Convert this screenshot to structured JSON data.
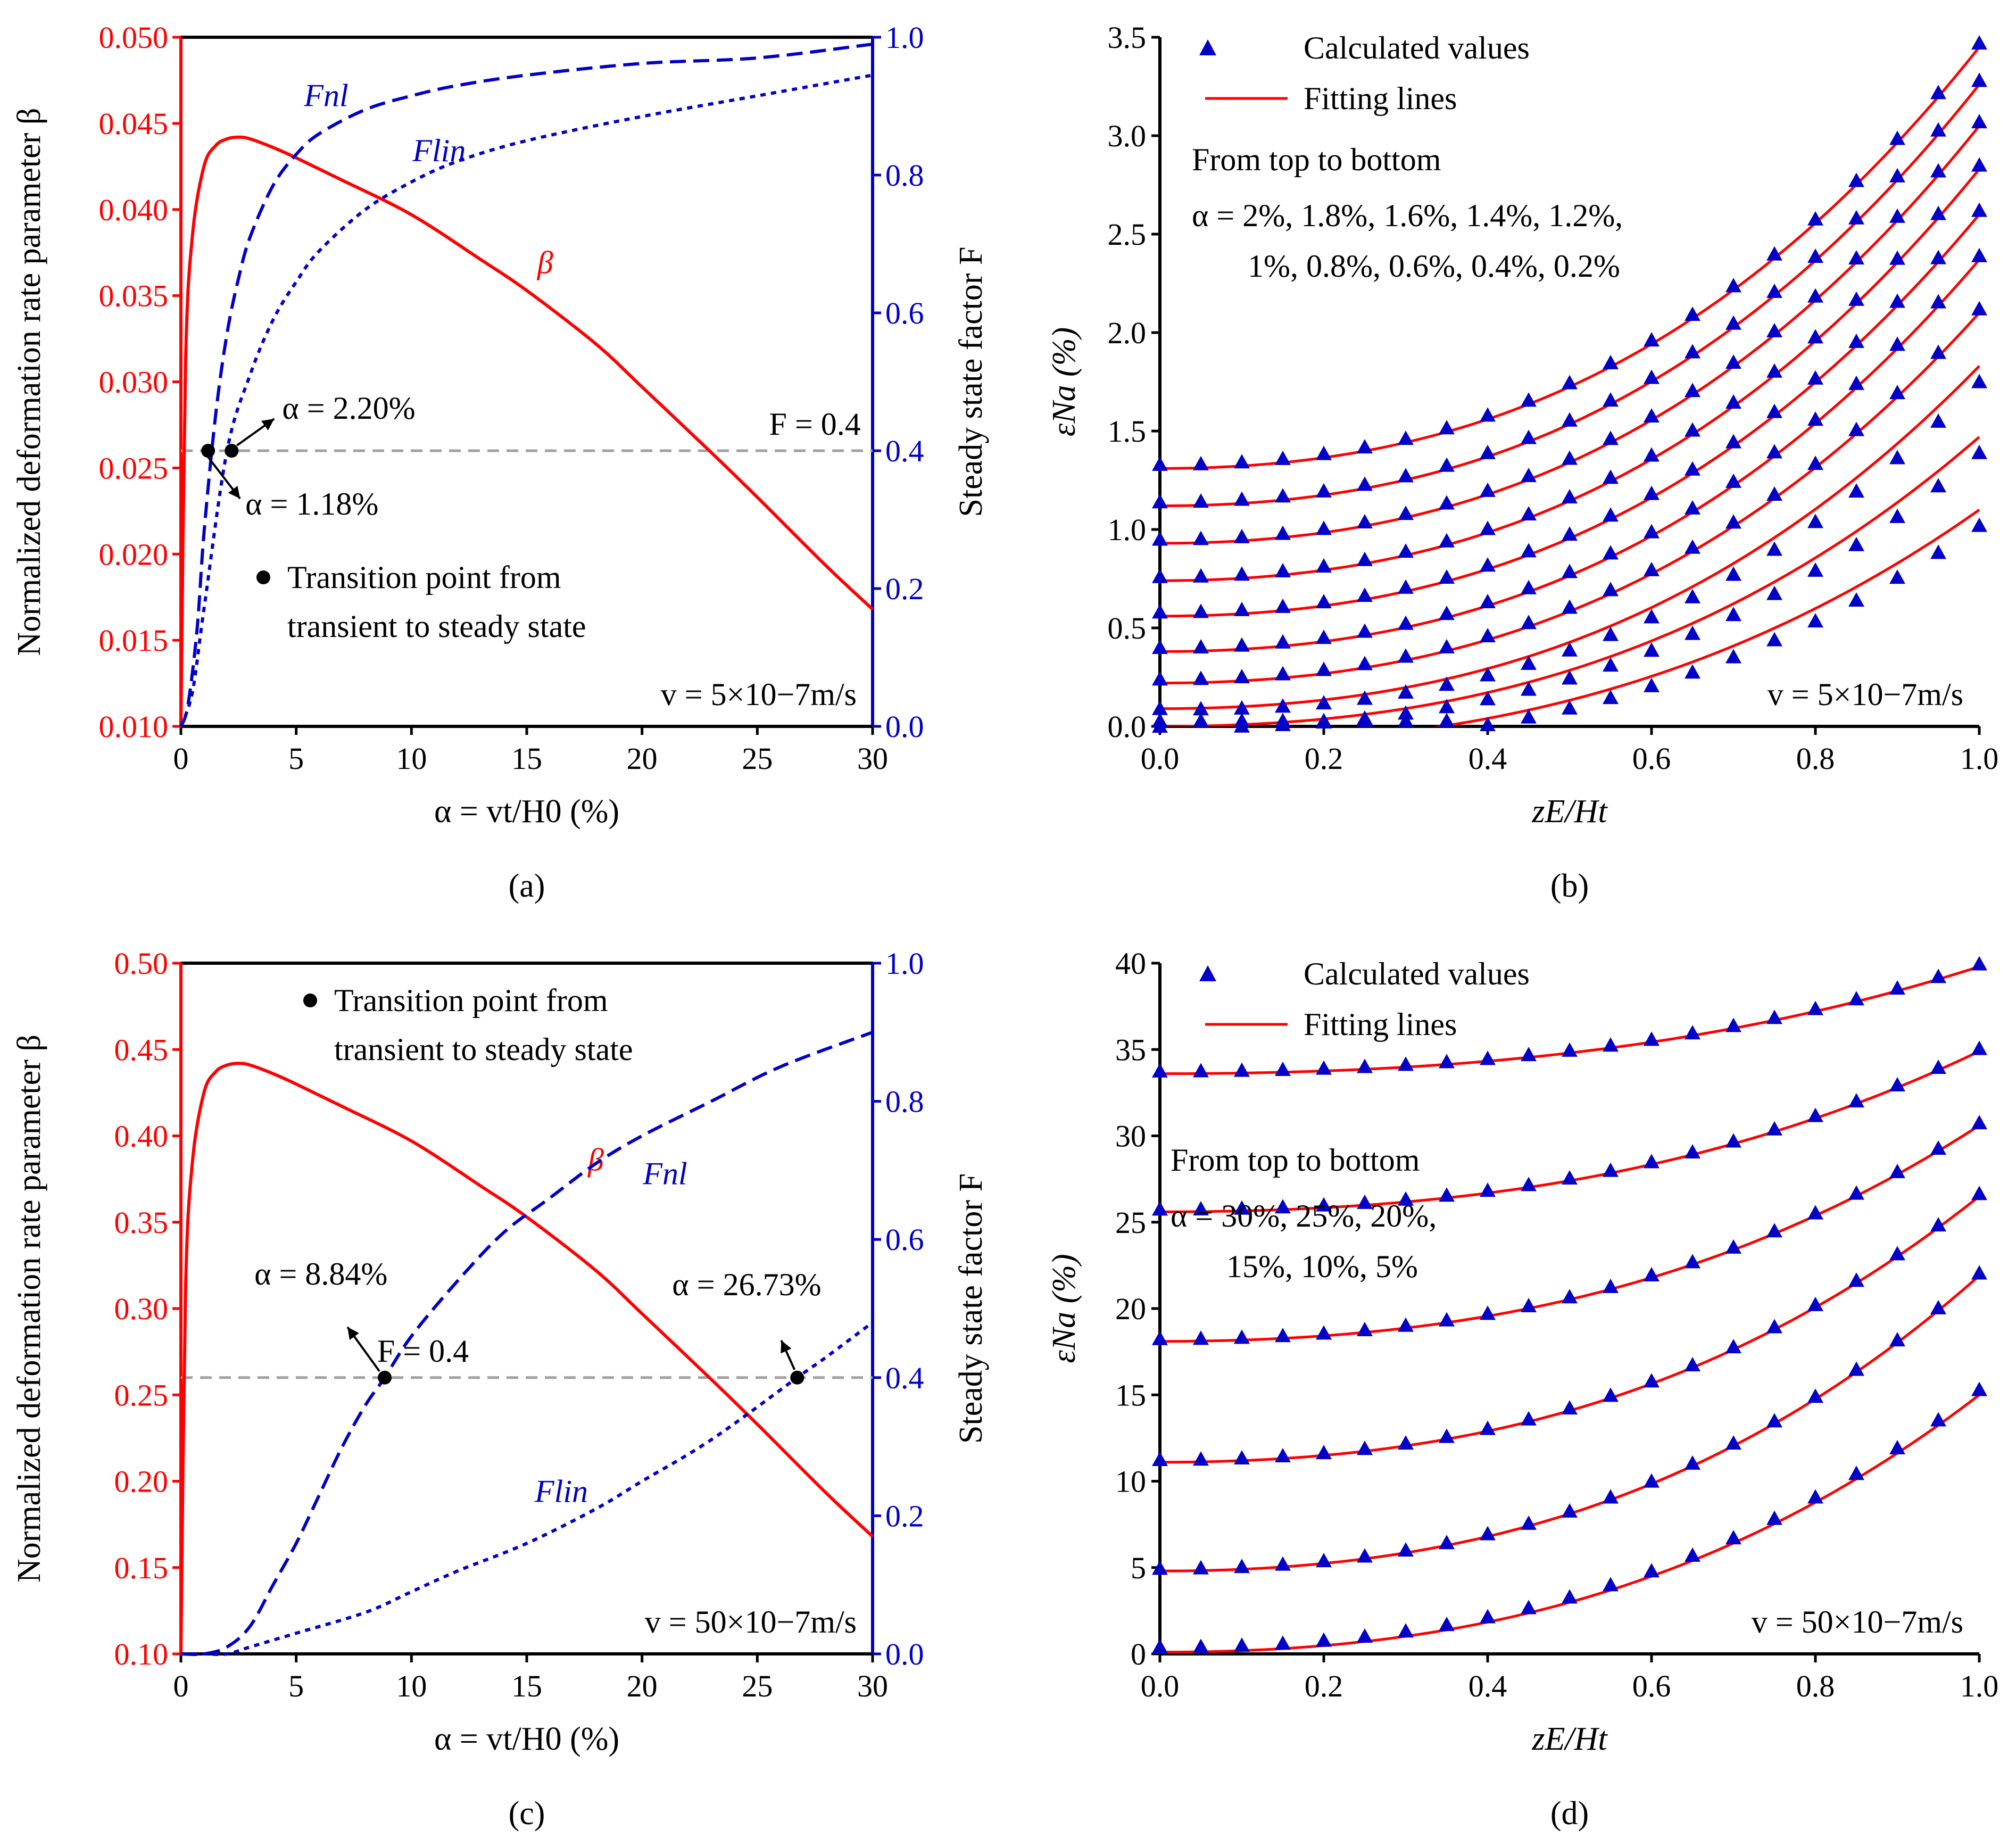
{
  "colors": {
    "beta": "#ff0000",
    "F": "#0000c8",
    "points": "#0000c8",
    "fit": "#ff0000",
    "threshold": "#a0a0a0",
    "marker": "#000000"
  },
  "chart_data": [
    {
      "panel": "a",
      "panel_label": "(a)",
      "type": "line",
      "xlabel": "α = vt/H0 (%)",
      "ylabel_left": "Normalized deformation rate parameter β",
      "ylabel_right": "Steady state factor F",
      "xlim": [
        0,
        30
      ],
      "ylim_left": [
        0.01,
        0.05
      ],
      "ylim_right": [
        0,
        1
      ],
      "xticks": [
        "0",
        "5",
        "10",
        "15",
        "20",
        "25",
        "30"
      ],
      "yticks_left": [
        "0.010",
        "0.015",
        "0.020",
        "0.025",
        "0.030",
        "0.035",
        "0.040",
        "0.045",
        "0.050"
      ],
      "yticks_right": [
        "0.0",
        "0.2",
        "0.4",
        "0.6",
        "0.8",
        "1.0"
      ],
      "series": [
        {
          "name": "β",
          "axis": "left",
          "style": "solid",
          "x": [
            0,
            0.2,
            0.5,
            1,
            1.5,
            2,
            2.5,
            3,
            4,
            5,
            7,
            10,
            13,
            15,
            18,
            20,
            23,
            25,
            28,
            30
          ],
          "y": [
            0.01,
            0.031,
            0.0385,
            0.0425,
            0.0437,
            0.0441,
            0.0442,
            0.0441,
            0.0436,
            0.043,
            0.0417,
            0.0397,
            0.0371,
            0.0353,
            0.0322,
            0.0297,
            0.0259,
            0.0233,
            0.0193,
            0.0168
          ]
        },
        {
          "name": "Fnl",
          "axis": "right",
          "style": "dashed",
          "x": [
            0,
            0.3,
            0.7,
            1,
            1.5,
            2,
            2.5,
            3,
            4,
            5,
            6,
            8,
            10,
            12,
            15,
            20,
            25,
            30
          ],
          "y": [
            0,
            0.03,
            0.14,
            0.28,
            0.45,
            0.57,
            0.65,
            0.71,
            0.785,
            0.83,
            0.86,
            0.895,
            0.915,
            0.93,
            0.945,
            0.962,
            0.97,
            0.99
          ]
        },
        {
          "name": "Flin",
          "axis": "right",
          "style": "dotted",
          "x": [
            0,
            0.5,
            1,
            2,
            3,
            4,
            5,
            6,
            8,
            10,
            12,
            15,
            20,
            25,
            30
          ],
          "y": [
            0,
            0.05,
            0.17,
            0.4,
            0.51,
            0.59,
            0.645,
            0.69,
            0.75,
            0.79,
            0.82,
            0.85,
            0.885,
            0.915,
            0.945
          ]
        }
      ],
      "threshold": {
        "label": "F = 0.4",
        "F": 0.4
      },
      "transition_points": [
        {
          "x": 1.18,
          "F": 0.4,
          "label": "α = 1.18%"
        },
        {
          "x": 2.2,
          "F": 0.4,
          "label": "α = 2.20%"
        }
      ],
      "legend": "● Transition point from transient to steady state",
      "legend_line1": "Transition point from",
      "legend_line2": "transient to steady state",
      "velocity_label": "v = 5×10−7m/s"
    },
    {
      "panel": "b",
      "panel_label": "(b)",
      "type": "scatter",
      "xlabel": "zE/Ht",
      "ylabel": "εNa (%)",
      "xlim": [
        0,
        1
      ],
      "ylim": [
        0,
        3.5
      ],
      "xticks": [
        "0.0",
        "0.2",
        "0.4",
        "0.6",
        "0.8",
        "1.0"
      ],
      "yticks": [
        "0.0",
        "0.5",
        "1.0",
        "1.5",
        "2.0",
        "2.5",
        "3.0",
        "3.5"
      ],
      "legend": {
        "points": "Calculated values",
        "lines": "Fitting lines"
      },
      "note_title": "From top to bottom",
      "note_line1": "α = 2%, 1.8%, 1.6%, 1.4%, 1.2%,",
      "note_line2": "1%, 0.8%, 0.6%, 0.4%, 0.2%",
      "velocity_label": "v = 5×10−7m/s",
      "x_points": [
        0,
        0.05,
        0.1,
        0.15,
        0.2,
        0.25,
        0.3,
        0.35,
        0.4,
        0.45,
        0.5,
        0.55,
        0.6,
        0.65,
        0.7,
        0.75,
        0.8,
        0.85,
        0.9,
        0.95,
        1.0
      ],
      "curves": [
        {
          "alpha": "2%",
          "y0": 1.31,
          "y1": 3.45
        },
        {
          "alpha": "1.8%",
          "y0": 1.12,
          "y1": 3.26
        },
        {
          "alpha": "1.6%",
          "y0": 0.93,
          "y1": 3.05
        },
        {
          "alpha": "1.4%",
          "y0": 0.74,
          "y1": 2.83
        },
        {
          "alpha": "1.2%",
          "y0": 0.56,
          "y1": 2.6
        },
        {
          "alpha": "1%",
          "y0": 0.38,
          "y1": 2.37
        },
        {
          "alpha": "0.8%",
          "y0": 0.22,
          "y1": 2.1
        },
        {
          "alpha": "0.6%",
          "y0": 0.09,
          "y1": 1.83
        },
        {
          "alpha": "0.4%",
          "y0": 0.0,
          "y1": 1.47
        },
        {
          "alpha": "0.2%",
          "y0": -0.1,
          "y1": 1.1
        }
      ]
    },
    {
      "panel": "c",
      "panel_label": "(c)",
      "type": "line",
      "xlabel": "α = vt/H0 (%)",
      "ylabel_left": "Normalized deformation rate parameter β",
      "ylabel_right": "Steady state factor F",
      "xlim": [
        0,
        30
      ],
      "ylim_left": [
        0.1,
        0.5
      ],
      "ylim_right": [
        0,
        1
      ],
      "xticks": [
        "0",
        "5",
        "10",
        "15",
        "20",
        "25",
        "30"
      ],
      "yticks_left": [
        "0.10",
        "0.15",
        "0.20",
        "0.25",
        "0.30",
        "0.35",
        "0.40",
        "0.45",
        "0.50"
      ],
      "yticks_right": [
        "0.0",
        "0.2",
        "0.4",
        "0.6",
        "0.8",
        "1.0"
      ],
      "series": [
        {
          "name": "β",
          "axis": "left",
          "style": "solid",
          "x": [
            0,
            0.2,
            0.5,
            1,
            1.5,
            2,
            2.5,
            3,
            4,
            5,
            7,
            10,
            13,
            15,
            18,
            20,
            23,
            25,
            28,
            30
          ],
          "y": [
            0.1,
            0.31,
            0.385,
            0.425,
            0.437,
            0.441,
            0.442,
            0.441,
            0.436,
            0.43,
            0.417,
            0.397,
            0.371,
            0.353,
            0.322,
            0.297,
            0.259,
            0.233,
            0.193,
            0.168
          ]
        },
        {
          "name": "Fnl",
          "axis": "right",
          "style": "dashed",
          "x": [
            0,
            1,
            2,
            3,
            4,
            5,
            6,
            7,
            8,
            8.84,
            10,
            12,
            14,
            16,
            18,
            20,
            23,
            26,
            30
          ],
          "y": [
            0,
            0,
            0.01,
            0.04,
            0.1,
            0.16,
            0.23,
            0.3,
            0.36,
            0.4,
            0.46,
            0.54,
            0.61,
            0.66,
            0.71,
            0.75,
            0.8,
            0.85,
            0.9
          ]
        },
        {
          "name": "Flin",
          "axis": "right",
          "style": "dotted",
          "x": [
            0,
            1,
            2,
            3,
            5,
            8,
            10,
            12,
            15,
            18,
            20,
            23,
            26.73,
            28,
            30
          ],
          "y": [
            0,
            0,
            0,
            0.01,
            0.03,
            0.06,
            0.09,
            0.12,
            0.16,
            0.21,
            0.25,
            0.31,
            0.4,
            0.43,
            0.48
          ]
        }
      ],
      "threshold": {
        "label": "F = 0.4",
        "F": 0.4
      },
      "transition_points": [
        {
          "x": 8.84,
          "F": 0.4,
          "label": "α = 8.84%"
        },
        {
          "x": 26.73,
          "F": 0.4,
          "label": "α = 26.73%"
        }
      ],
      "legend_line1": "Transition point from",
      "legend_line2": "transient to steady state",
      "velocity_label": "v = 50×10−7m/s"
    },
    {
      "panel": "d",
      "panel_label": "(d)",
      "type": "scatter",
      "xlabel": "zE/Ht",
      "ylabel": "εNa (%)",
      "xlim": [
        0,
        1
      ],
      "ylim": [
        0,
        40
      ],
      "xticks": [
        "0.0",
        "0.2",
        "0.4",
        "0.6",
        "0.8",
        "1.0"
      ],
      "yticks": [
        "0",
        "5",
        "10",
        "15",
        "20",
        "25",
        "30",
        "35",
        "40"
      ],
      "legend": {
        "points": "Calculated values",
        "lines": "Fitting lines"
      },
      "note_title": "From top to bottom",
      "note_line1": "α = 30%, 25%, 20%,",
      "note_line2": "15%, 10%, 5%",
      "velocity_label": "v = 50×10−7m/s",
      "x_points": [
        0,
        0.05,
        0.1,
        0.15,
        0.2,
        0.25,
        0.3,
        0.35,
        0.4,
        0.45,
        0.5,
        0.55,
        0.6,
        0.65,
        0.7,
        0.75,
        0.8,
        0.85,
        0.9,
        0.95,
        1.0
      ],
      "curves": [
        {
          "alpha": "30%",
          "y0": 33.6,
          "y1": 39.8
        },
        {
          "alpha": "25%",
          "y0": 25.6,
          "y1": 34.9
        },
        {
          "alpha": "20%",
          "y0": 18.1,
          "y1": 30.6
        },
        {
          "alpha": "15%",
          "y0": 11.1,
          "y1": 26.5
        },
        {
          "alpha": "10%",
          "y0": 4.8,
          "y1": 21.9
        },
        {
          "alpha": "5%",
          "y0": 0.1,
          "y1": 15.0
        }
      ]
    }
  ]
}
